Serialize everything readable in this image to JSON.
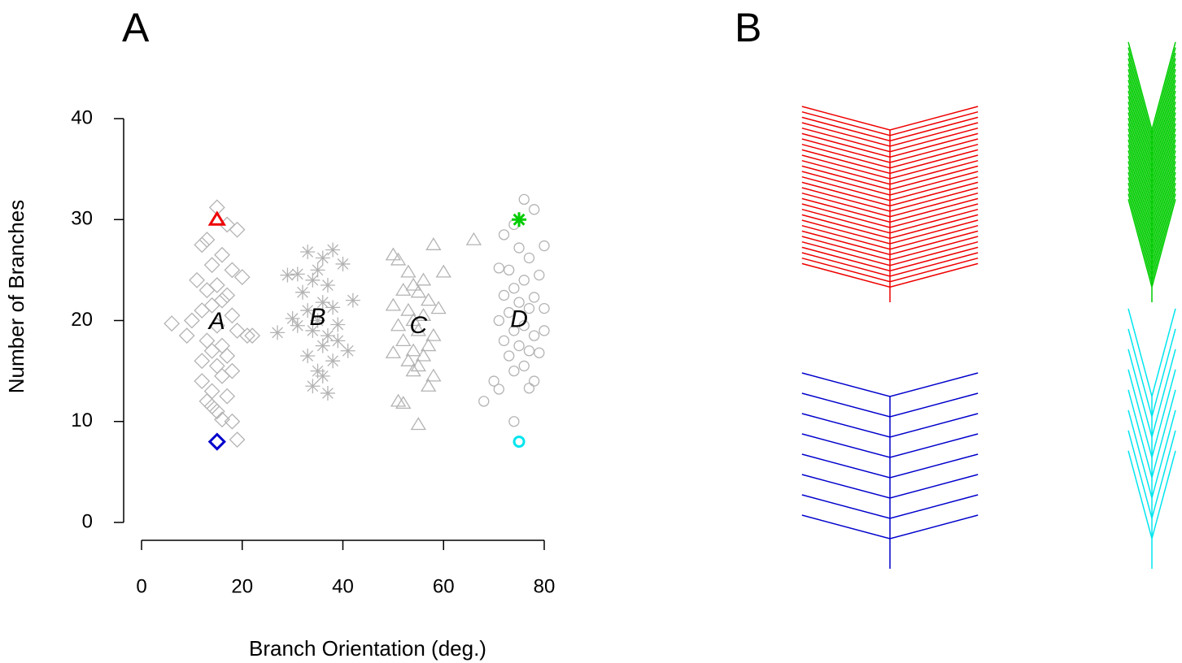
{
  "chart_data": {
    "type": "scatter",
    "panel_labels": [
      "A",
      "B"
    ],
    "x_label": "Branch Orientation (deg.)",
    "y_label": "Number of Branches",
    "xlim": [
      0,
      80
    ],
    "xticks": [
      0,
      20,
      40,
      60,
      80
    ],
    "ylim": [
      0,
      40
    ],
    "yticks": [
      0,
      10,
      20,
      30,
      40
    ],
    "grid": false,
    "series": [
      {
        "marker": "diamond",
        "color": "#b3b3b3",
        "x": [
          15,
          17,
          19,
          13,
          12,
          16,
          14,
          18,
          20,
          11,
          15,
          13,
          17,
          16,
          14,
          12,
          18,
          10,
          15,
          19,
          21,
          13,
          16,
          14,
          17,
          12,
          15,
          18,
          16,
          6,
          9,
          22,
          14,
          13,
          17,
          15,
          18,
          16,
          12,
          14,
          19
        ],
        "values": [
          31.2,
          29.5,
          29,
          28,
          27.5,
          26.5,
          25.5,
          25,
          24.3,
          24,
          23.5,
          23,
          22.5,
          22,
          21.5,
          21,
          20.5,
          20,
          19.5,
          19,
          18.5,
          18,
          17.5,
          17,
          16.5,
          16,
          15.5,
          15,
          14.5,
          19.7,
          18.5,
          18.5,
          13,
          12,
          12.5,
          11,
          10,
          10.2,
          14,
          11.5,
          8.2
        ]
      },
      {
        "marker": "asterisk",
        "color": "#b3b3b3",
        "x": [
          33,
          38,
          36,
          35,
          31,
          40,
          34,
          37,
          29,
          42,
          32,
          36,
          38,
          33,
          35,
          30,
          39,
          34,
          37,
          27,
          41,
          36,
          33,
          38,
          35,
          34,
          37,
          31,
          39,
          36
        ],
        "values": [
          26.8,
          27,
          26.2,
          25,
          24.6,
          25.6,
          24,
          23.5,
          24.5,
          22,
          22.8,
          21.8,
          21.3,
          21,
          20,
          20.2,
          19.6,
          19,
          18.5,
          18.8,
          17,
          17.5,
          16.5,
          16,
          15,
          13.5,
          12.8,
          19.5,
          18,
          14.5
        ]
      },
      {
        "marker": "triangle",
        "color": "#b3b3b3",
        "x": [
          50,
          51,
          53,
          58,
          60,
          56,
          54,
          52,
          55,
          57,
          50,
          53,
          56,
          59,
          54,
          51,
          55,
          58,
          52,
          57,
          54,
          56,
          53,
          50,
          55,
          58,
          51,
          57,
          55,
          66,
          52,
          54
        ],
        "values": [
          26.5,
          26,
          24.8,
          27.5,
          24.8,
          24,
          23.5,
          23,
          22.8,
          22,
          21.5,
          21,
          20.5,
          21.2,
          20,
          19.5,
          19,
          18.5,
          18,
          17.5,
          17,
          16.5,
          16,
          16.8,
          15.5,
          14.5,
          12,
          13.5,
          9.7,
          28,
          11.8,
          15
        ]
      },
      {
        "marker": "circle",
        "color": "#b3b3b3",
        "x": [
          76,
          78,
          74,
          72,
          80,
          75,
          77,
          71,
          73,
          79,
          76,
          74,
          72,
          78,
          75,
          77,
          73,
          80,
          71,
          76,
          74,
          78,
          72,
          75,
          77,
          73,
          79,
          76,
          74,
          70,
          71,
          77,
          78,
          68,
          80,
          74
        ],
        "values": [
          32,
          31,
          29.5,
          28.5,
          27.4,
          27.2,
          26.2,
          25.2,
          25,
          24.5,
          24,
          23.2,
          22.5,
          22.3,
          21.8,
          21.2,
          20.8,
          21.2,
          20,
          19.5,
          19,
          18.5,
          18,
          17.5,
          17,
          16.5,
          16.8,
          15.5,
          15,
          14,
          13.2,
          13.3,
          14,
          12,
          19,
          10
        ]
      },
      {
        "marker": "triangle",
        "color": "#ee0000",
        "highlight": true,
        "x": [
          15
        ],
        "values": [
          30
        ]
      },
      {
        "marker": "diamond",
        "color": "#0000cc",
        "highlight": true,
        "x": [
          15
        ],
        "values": [
          8
        ]
      },
      {
        "marker": "asterisk",
        "color": "#00cc00",
        "highlight": true,
        "x": [
          75
        ],
        "values": [
          30
        ]
      },
      {
        "marker": "circle",
        "color": "#00e5ee",
        "highlight": true,
        "x": [
          75
        ],
        "values": [
          8
        ]
      }
    ],
    "annotations": [
      {
        "text": "A",
        "x": 15,
        "y": 19.8
      },
      {
        "text": "B",
        "x": 35,
        "y": 20.2
      },
      {
        "text": "C",
        "x": 55,
        "y": 19.4
      },
      {
        "text": "D",
        "x": 75,
        "y": 20
      }
    ]
  }
}
